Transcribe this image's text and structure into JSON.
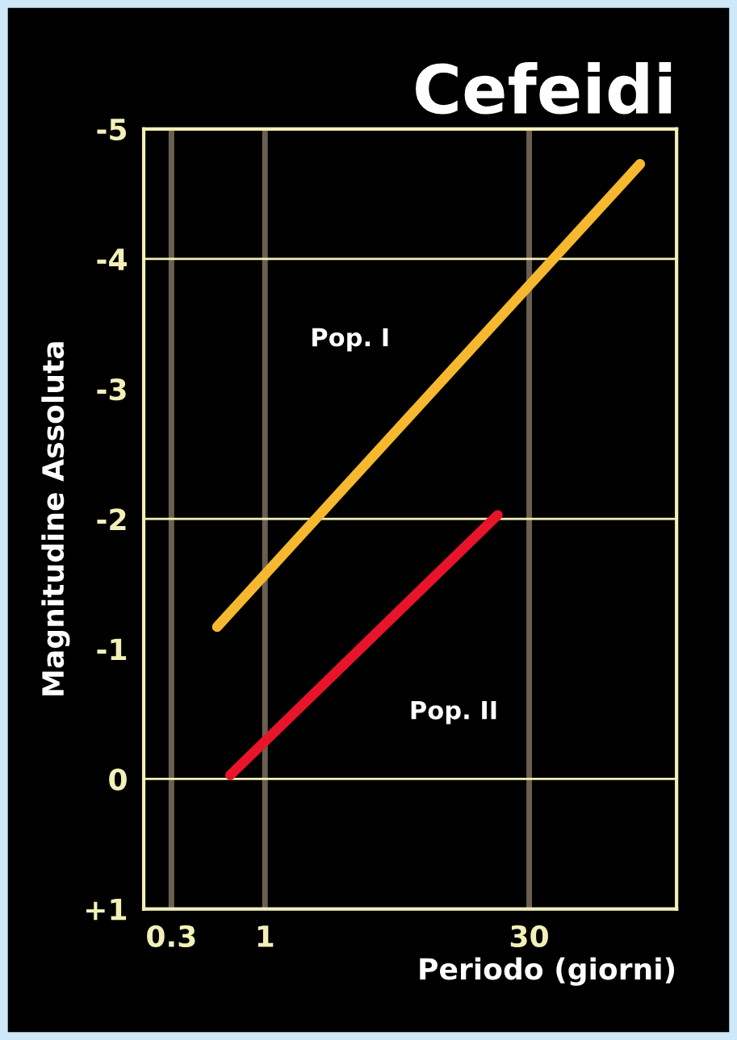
{
  "chart_data": {
    "type": "line",
    "title": "Cefeidi",
    "xlabel": "Periodo (giorni)",
    "ylabel": "Magnitudine Assoluta",
    "log": "x",
    "xlim": [
      0.21,
      200
    ],
    "xticks": [
      0.3,
      1,
      30
    ],
    "ylim": [
      1,
      -5
    ],
    "yticks": [
      {
        "value": -5,
        "label": "-5"
      },
      {
        "value": -4,
        "label": "-4"
      },
      {
        "value": -3,
        "label": "-3"
      },
      {
        "value": -2,
        "label": "-2"
      },
      {
        "value": -1,
        "label": "-1"
      },
      {
        "value": 0,
        "label": "0"
      },
      {
        "value": 1,
        "label": "+1"
      }
    ],
    "series": [
      {
        "name": "Pop. I",
        "color": "#f5b82e",
        "x": [
          0.54,
          125
        ],
        "values": [
          -1.17,
          -4.73
        ]
      },
      {
        "name": "Pop. II",
        "color": "#e8142a",
        "x": [
          0.64,
          20
        ],
        "values": [
          -0.03,
          -2.03
        ]
      }
    ],
    "grid": "x",
    "line_style": "solid",
    "ref_lines": [
      {
        "axis": "y",
        "value": -4,
        "color": "#f2f0b8"
      },
      {
        "axis": "y",
        "value": -2,
        "color": "#f2f0b8"
      },
      {
        "axis": "y",
        "value": 0,
        "color": "#f2f0b8"
      }
    ]
  }
}
